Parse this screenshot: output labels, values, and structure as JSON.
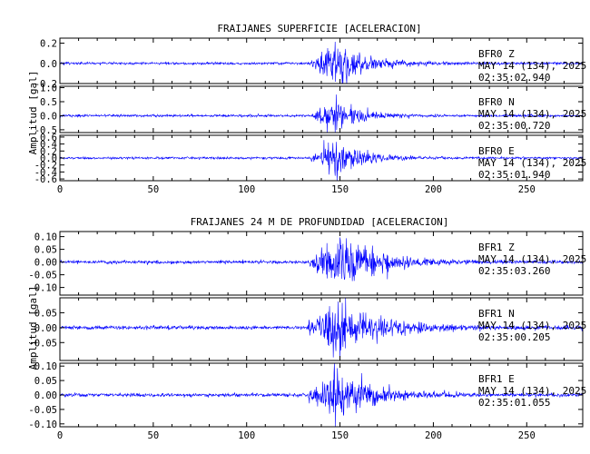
{
  "chart_data": [
    {
      "type": "line",
      "title": "FRAIJANES SUPERFICIE [ACELERACION]",
      "ylabel": "Amplitud [gal]",
      "xlim": [
        0,
        280
      ],
      "x_ticks": [
        "0",
        "50",
        "100",
        "150",
        "200",
        "250"
      ],
      "line_color": "#0000ff",
      "series": [
        {
          "station": "BFR0",
          "channel": "Z",
          "date": "MAY 14 (134), 2025",
          "time": "02:35:02.940",
          "ylim": [
            -0.2,
            0.25
          ],
          "y_ticks": [
            {
              "v": 0.2,
              "t": "0.2"
            },
            {
              "v": 0.0,
              "t": "0.0"
            },
            {
              "v": -0.2,
              "t": "-0.2"
            }
          ],
          "baseline_noise": 0.006,
          "event_onset_s": 135,
          "peak_time_s": 146,
          "peak_amplitude": 0.22,
          "duration_s": 50,
          "seed": 11
        },
        {
          "station": "BFR0",
          "channel": "N",
          "date": "MAY 14 (134), 2025",
          "time": "02:35:00.720",
          "ylim": [
            -0.6,
            1.05
          ],
          "y_ticks": [
            {
              "v": 1.0,
              "t": "1.0"
            },
            {
              "v": 0.5,
              "t": "0.5"
            },
            {
              "v": 0.0,
              "t": "0.0"
            },
            {
              "v": -0.5,
              "t": "-0.5"
            }
          ],
          "baseline_noise": 0.02,
          "event_onset_s": 135,
          "peak_time_s": 147,
          "peak_amplitude": 0.55,
          "duration_s": 40,
          "seed": 23
        },
        {
          "station": "BFR0",
          "channel": "E",
          "date": "MAY 14 (134), 2025",
          "time": "02:35:01.940",
          "ylim": [
            -0.65,
            0.65
          ],
          "y_ticks": [
            {
              "v": 0.6,
              "t": "0.6"
            },
            {
              "v": 0.4,
              "t": "0.4"
            },
            {
              "v": 0.2,
              "t": "0.2"
            },
            {
              "v": 0.0,
              "t": "0.0"
            },
            {
              "v": -0.2,
              "t": "-0.2"
            },
            {
              "v": -0.4,
              "t": "-0.4"
            },
            {
              "v": -0.6,
              "t": "-0.6"
            }
          ],
          "baseline_noise": 0.015,
          "event_onset_s": 134,
          "peak_time_s": 147,
          "peak_amplitude": 0.5,
          "duration_s": 45,
          "seed": 37
        }
      ]
    },
    {
      "type": "line",
      "title": "FRAIJANES 24 M DE PROFUNDIDAD [ACELERACION]",
      "ylabel": "Amplitud [gal]",
      "xlim": [
        0,
        280
      ],
      "x_ticks": [
        "0",
        "50",
        "100",
        "150",
        "200",
        "250"
      ],
      "line_color": "#0000ff",
      "series": [
        {
          "station": "BFR1",
          "channel": "Z",
          "date": "MAY 14 (134), 2025",
          "time": "02:35:03.260",
          "ylim": [
            -0.13,
            0.12
          ],
          "y_ticks": [
            {
              "v": 0.1,
              "t": "0.10"
            },
            {
              "v": 0.05,
              "t": "0.05"
            },
            {
              "v": 0.0,
              "t": "0.00"
            },
            {
              "v": -0.05,
              "t": "-0.05"
            },
            {
              "v": -0.1,
              "t": "-0.10"
            }
          ],
          "baseline_noise": 0.003,
          "event_onset_s": 134,
          "peak_time_s": 148,
          "peak_amplitude": 0.11,
          "duration_s": 60,
          "seed": 41
        },
        {
          "station": "BFR1",
          "channel": "N",
          "date": "MAY 14 (134), 2025",
          "time": "02:35:00.205",
          "ylim": [
            -0.11,
            0.1
          ],
          "y_ticks": [
            {
              "v": 0.05,
              "t": "0.05"
            },
            {
              "v": 0.0,
              "t": "0.00"
            },
            {
              "v": -0.05,
              "t": "-0.05"
            }
          ],
          "baseline_noise": 0.003,
          "event_onset_s": 133,
          "peak_time_s": 147,
          "peak_amplitude": 0.09,
          "duration_s": 70,
          "seed": 53
        },
        {
          "station": "BFR1",
          "channel": "E",
          "date": "MAY 14 (134), 2025",
          "time": "02:35:01.055",
          "ylim": [
            -0.11,
            0.11
          ],
          "y_ticks": [
            {
              "v": 0.1,
              "t": "0.10"
            },
            {
              "v": 0.05,
              "t": "0.05"
            },
            {
              "v": 0.0,
              "t": "0.00"
            },
            {
              "v": -0.05,
              "t": "-0.05"
            },
            {
              "v": -0.1,
              "t": "-0.10"
            }
          ],
          "baseline_noise": 0.003,
          "event_onset_s": 133,
          "peak_time_s": 147,
          "peak_amplitude": 0.085,
          "duration_s": 55,
          "seed": 67
        }
      ]
    }
  ]
}
